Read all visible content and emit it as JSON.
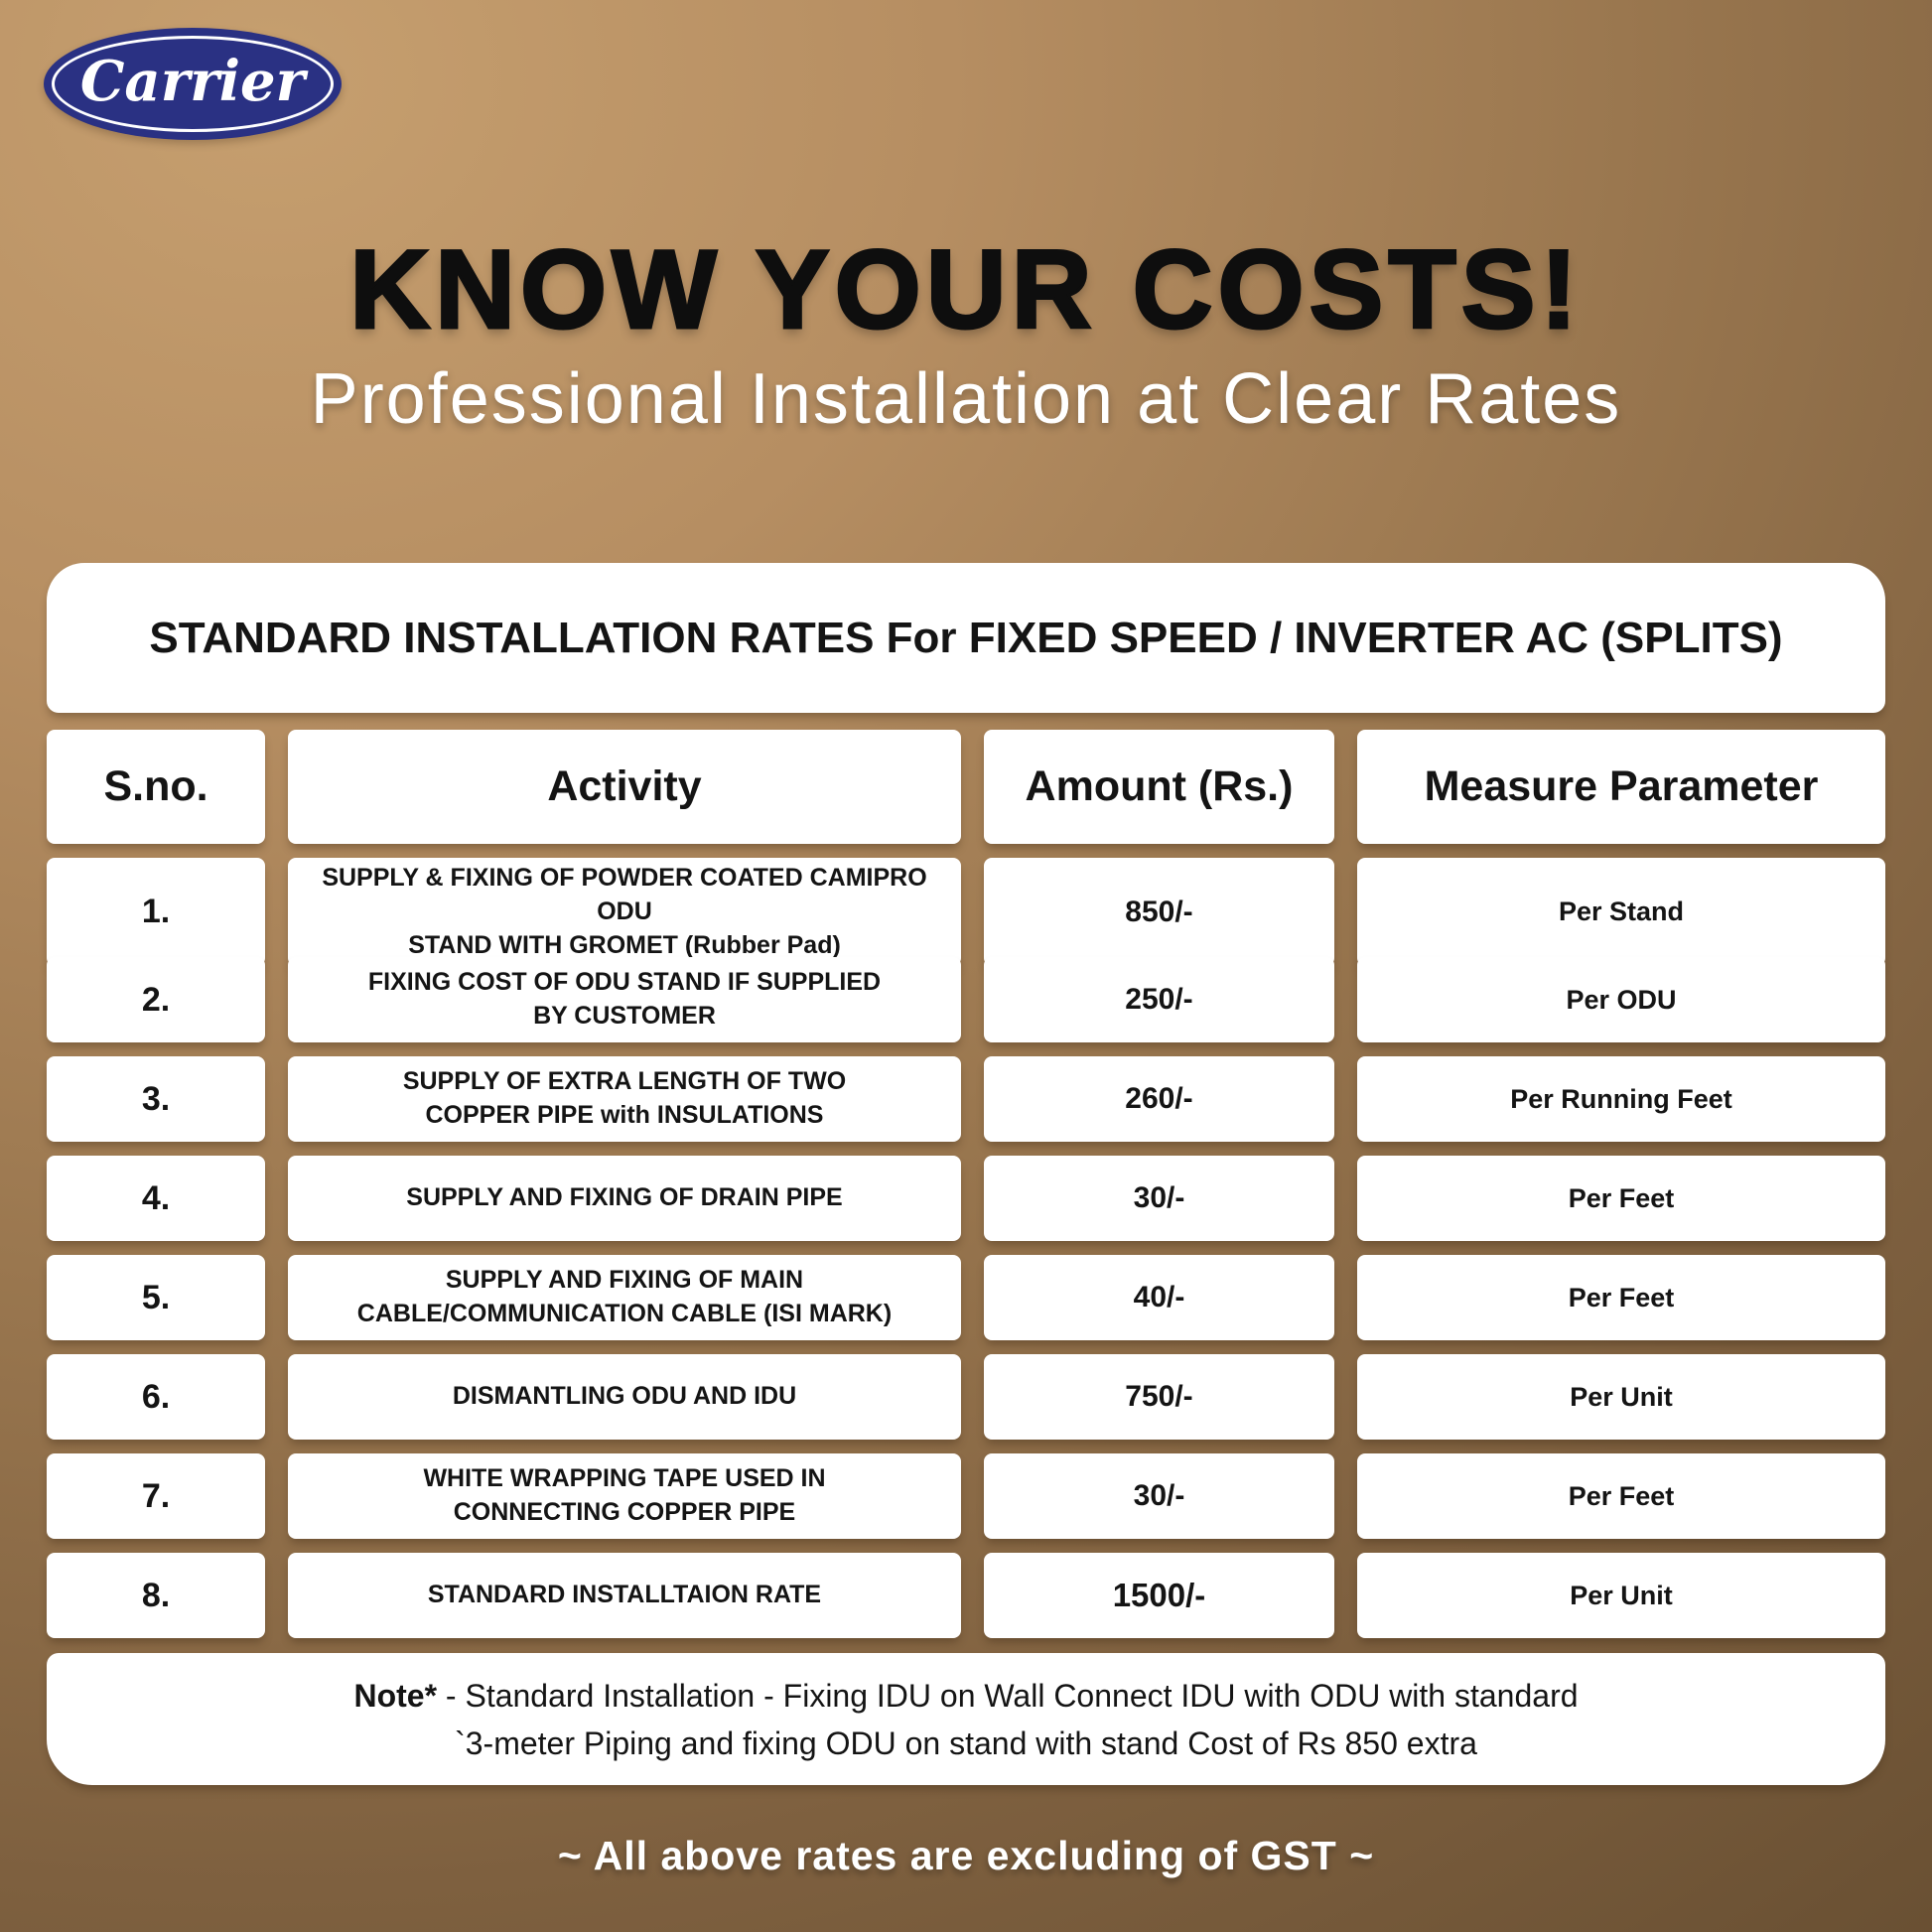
{
  "brand": {
    "logo_text": "Carrier"
  },
  "header": {
    "title": "KNOW YOUR COSTS!",
    "subtitle": "Professional Installation at Clear Rates"
  },
  "table": {
    "title": "STANDARD INSTALLATION RATES For FIXED SPEED / INVERTER AC (SPLITS)",
    "columns": [
      "S.no.",
      "Activity",
      "Amount (Rs.)",
      "Measure Parameter"
    ],
    "rows": [
      {
        "sno": "1.",
        "activity_lines": [
          "SUPPLY & FIXING OF POWDER COATED CAMIPRO ODU",
          "STAND WITH GROMET (Rubber Pad)"
        ],
        "amount": "850/-",
        "measure": "Per Stand",
        "emphasis": false
      },
      {
        "sno": "2.",
        "activity_lines": [
          "FIXING COST OF ODU STAND IF SUPPLIED",
          "BY CUSTOMER"
        ],
        "amount": "250/-",
        "measure": "Per ODU",
        "emphasis": false
      },
      {
        "sno": "3.",
        "activity_lines": [
          "SUPPLY OF EXTRA LENGTH OF TWO",
          "COPPER PIPE with INSULATIONS"
        ],
        "amount": "260/-",
        "measure": "Per Running Feet",
        "emphasis": false
      },
      {
        "sno": "4.",
        "activity_lines": [
          "SUPPLY AND FIXING OF DRAIN PIPE"
        ],
        "amount": "30/-",
        "measure": "Per Feet",
        "emphasis": false
      },
      {
        "sno": "5.",
        "activity_lines": [
          "SUPPLY AND FIXING OF MAIN",
          "CABLE/COMMUNICATION CABLE (ISI MARK)"
        ],
        "amount": "40/-",
        "measure": "Per Feet",
        "emphasis": false
      },
      {
        "sno": "6.",
        "activity_lines": [
          "DISMANTLING ODU AND IDU"
        ],
        "amount": "750/-",
        "measure": "Per Unit",
        "emphasis": false
      },
      {
        "sno": "7.",
        "activity_lines": [
          "WHITE WRAPPING TAPE USED IN",
          "CONNECTING COPPER PIPE"
        ],
        "amount": "30/-",
        "measure": "Per Feet",
        "emphasis": false
      },
      {
        "sno": "8.",
        "activity_lines": [
          "STANDARD INSTALLTAION RATE"
        ],
        "amount": "1500/-",
        "measure": "Per Unit",
        "emphasis": true
      }
    ],
    "note": {
      "prefix": "Note*",
      "line1": " - Standard Installation - Fixing IDU on Wall Connect IDU with ODU with standard",
      "line2": "`3-meter Piping and fixing ODU on stand with stand Cost of Rs 850 extra"
    }
  },
  "footer": {
    "text": "~ All above rates are excluding of GST ~"
  },
  "colors": {
    "background_top": "#c69f6f",
    "background_bottom": "#684f32",
    "logo_navy": "#2a3183",
    "card_white": "#ffffff",
    "heading_black": "#0e0e0e",
    "text_white": "#ffffff"
  }
}
